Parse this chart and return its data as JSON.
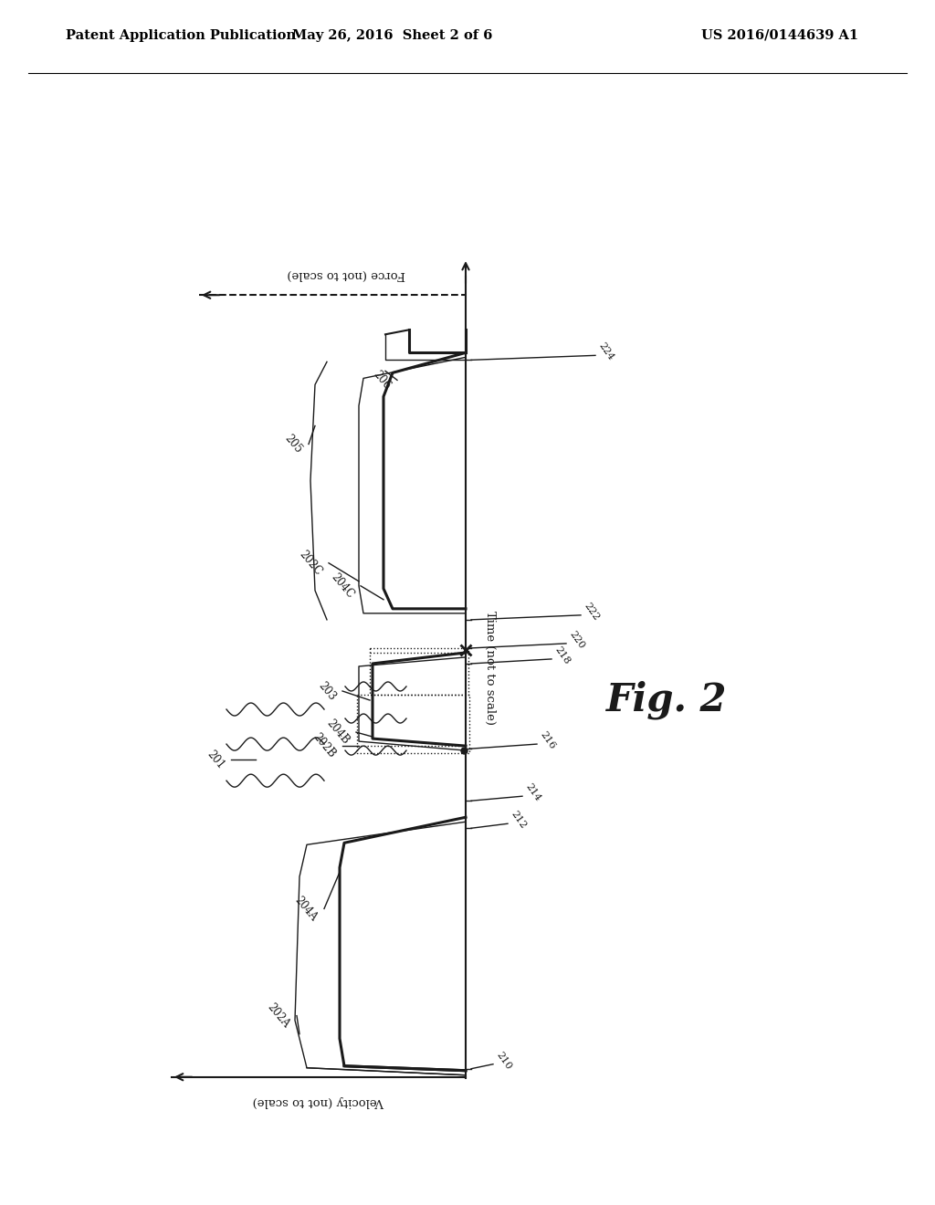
{
  "bg_color": "#ffffff",
  "header_left": "Patent Application Publication",
  "header_mid": "May 26, 2016  Sheet 2 of 6",
  "header_right": "US 2016/0144639 A1",
  "fig_label": "Fig. 2",
  "time_label": "Time (not to scale)",
  "force_label": "Force (not to scale)",
  "velocity_label": "Velocity (not to scale)"
}
